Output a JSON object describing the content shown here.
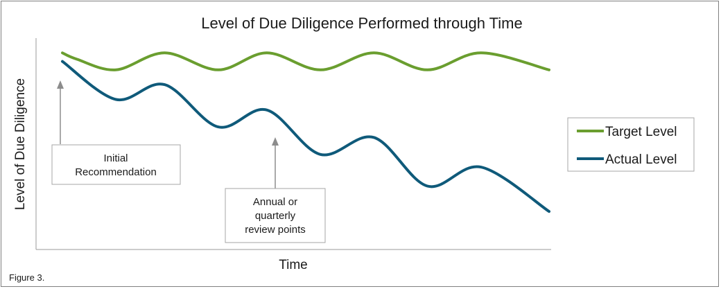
{
  "chart_data": {
    "type": "line",
    "title": "Level of Due Diligence Performed through Time",
    "xlabel": "Time",
    "ylabel": "Level of Due Diligence",
    "grid": false,
    "legend_position": "right",
    "series": [
      {
        "name": "Target Level",
        "color": "#6a9e2f",
        "points": [
          [
            0.0,
            0.93
          ],
          [
            0.03,
            0.9
          ],
          [
            0.11,
            0.85
          ],
          [
            0.21,
            0.93
          ],
          [
            0.32,
            0.85
          ],
          [
            0.42,
            0.93
          ],
          [
            0.53,
            0.85
          ],
          [
            0.64,
            0.93
          ],
          [
            0.75,
            0.85
          ],
          [
            0.86,
            0.93
          ],
          [
            1.0,
            0.85
          ]
        ]
      },
      {
        "name": "Actual Level",
        "color": "#0f5a7a",
        "points": [
          [
            0.0,
            0.89
          ],
          [
            0.11,
            0.71
          ],
          [
            0.21,
            0.78
          ],
          [
            0.32,
            0.58
          ],
          [
            0.42,
            0.66
          ],
          [
            0.53,
            0.45
          ],
          [
            0.64,
            0.53
          ],
          [
            0.75,
            0.3
          ],
          [
            0.86,
            0.39
          ],
          [
            1.0,
            0.18
          ]
        ]
      }
    ],
    "annotations": [
      {
        "lines": [
          "Initial",
          "Recommendation"
        ]
      },
      {
        "lines": [
          "Annual or",
          "quarterly",
          "review points"
        ]
      }
    ]
  },
  "caption": "Figure 3."
}
